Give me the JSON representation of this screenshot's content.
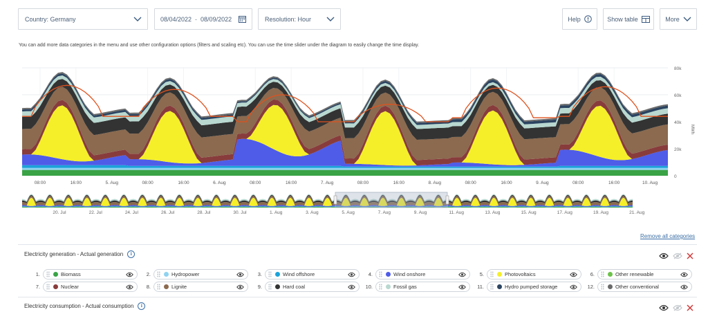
{
  "toolbar": {
    "country_label": "Country: Germany",
    "date_from": "08/04/2022",
    "date_separator": "-",
    "date_to": "08/09/2022",
    "resolution_label": "Resolution: Hour",
    "help_label": "Help",
    "show_table_label": "Show table",
    "more_label": "More"
  },
  "info_text": "You can add more data categories in the menu and use other configuration options (filters and scaling etc). You can use the time slider under the diagram to easily change the time display.",
  "remove_all_label": "Remove all categories",
  "sections": {
    "generation_title": "Electricity generation - Actual generation",
    "consumption_title": "Electricity consumption - Actual consumption"
  },
  "categories": [
    {
      "num": "1.",
      "label": "Biomass",
      "color": "#3aa346"
    },
    {
      "num": "2.",
      "label": "Hydropower",
      "color": "#8fd3f0"
    },
    {
      "num": "3.",
      "label": "Wind offshore",
      "color": "#1ba3d9"
    },
    {
      "num": "4.",
      "label": "Wind onshore",
      "color": "#4f5ce8"
    },
    {
      "num": "5.",
      "label": "Photovoltaics",
      "color": "#f5ef2a"
    },
    {
      "num": "6.",
      "label": "Other renewable",
      "color": "#6cc24a"
    },
    {
      "num": "7.",
      "label": "Nuclear",
      "color": "#883c3c"
    },
    {
      "num": "8.",
      "label": "Lignite",
      "color": "#8b6a4f"
    },
    {
      "num": "9.",
      "label": "Hard coal",
      "color": "#333333"
    },
    {
      "num": "10.",
      "label": "Fossil gas",
      "color": "#b8d8d0"
    },
    {
      "num": "11.",
      "label": "Hydro pumped storage",
      "color": "#2b4461"
    },
    {
      "num": "12.",
      "label": "Other conventional",
      "color": "#6a6a6a"
    }
  ],
  "chart_data": {
    "type": "area",
    "stacked": true,
    "unit": "MWh",
    "ylim": [
      0,
      80000
    ],
    "y_ticks": [
      "0",
      "20k",
      "40k",
      "60k",
      "80k"
    ],
    "x_ticks": [
      "08:00",
      "16:00",
      "5. Aug",
      "08:00",
      "16:00",
      "6. Aug",
      "08:00",
      "16:00",
      "7. Aug",
      "08:00",
      "16:00",
      "8. Aug",
      "08:00",
      "16:00",
      "9. Aug",
      "08:00",
      "16:00",
      "10. Aug"
    ],
    "days": [
      "Aug 4",
      "Aug 5",
      "Aug 6",
      "Aug 7",
      "Aug 8",
      "Aug 9"
    ],
    "series": [
      {
        "name": "Biomass",
        "color": "#3aa346",
        "daily_base": [
          4300,
          4300,
          4300,
          4300,
          4300,
          4300
        ]
      },
      {
        "name": "Hydropower",
        "color": "#8fd3f0",
        "daily_base": [
          1500,
          1500,
          1500,
          1500,
          1500,
          1500
        ]
      },
      {
        "name": "Wind offshore",
        "color": "#1ba3d9",
        "daily_base": [
          2000,
          1500,
          1500,
          1000,
          1000,
          1500
        ]
      },
      {
        "name": "Wind onshore",
        "color": "#4f5ce8",
        "daily_peak": [
          8000,
          5000,
          20000,
          2000,
          3000,
          12000
        ]
      },
      {
        "name": "Photovoltaics",
        "color": "#f5ef2a",
        "daily_peak": [
          40000,
          38000,
          34000,
          40000,
          40000,
          38000
        ]
      },
      {
        "name": "Nuclear",
        "color": "#883c3c",
        "daily_base": [
          4000,
          4000,
          4000,
          4000,
          4000,
          4000
        ]
      },
      {
        "name": "Lignite",
        "color": "#8b6a4f",
        "daily_base": [
          15000,
          15000,
          13000,
          15000,
          15000,
          15000
        ]
      },
      {
        "name": "Hard coal",
        "color": "#333333",
        "daily_base": [
          9000,
          9000,
          7000,
          8000,
          8000,
          8000
        ]
      },
      {
        "name": "Fossil gas",
        "color": "#b8d8d0",
        "daily_base": [
          4000,
          4000,
          3000,
          3000,
          3000,
          4000
        ]
      },
      {
        "name": "Hydro pumped storage",
        "color": "#2b4461",
        "daily_base": [
          1500,
          1500,
          1000,
          1500,
          2000,
          2000
        ]
      },
      {
        "name": "Other conventional",
        "color": "#6a6a6a",
        "daily_base": [
          1000,
          1000,
          1000,
          1000,
          1000,
          1000
        ]
      }
    ],
    "consumption": {
      "name": "Actual consumption",
      "color": "#e0521e",
      "daily_min": [
        44000,
        44000,
        40000,
        40000,
        43000,
        44000
      ],
      "daily_max": [
        67000,
        64000,
        60000,
        53000,
        65000,
        66000
      ]
    },
    "navigator": {
      "ticks": [
        "20. Jul",
        "22. Jul",
        "24. Jul",
        "26. Jul",
        "28. Jul",
        "30. Jul",
        "1. Aug",
        "3. Aug",
        "5. Aug",
        "7. Aug",
        "9. Aug",
        "11. Aug",
        "13. Aug",
        "15. Aug",
        "17. Aug",
        "19. Aug",
        "21. Aug"
      ]
    }
  }
}
